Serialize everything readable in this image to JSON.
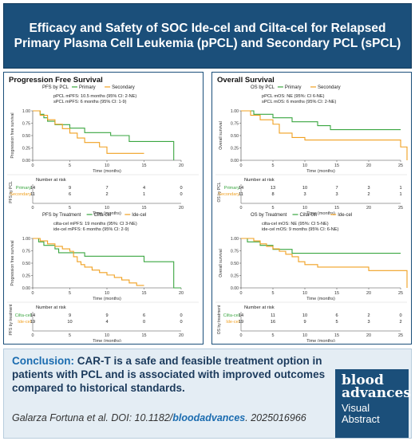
{
  "header": {
    "title": "Efficacy and Safety of SOC Ide-cel and Cilta-cel for Relapsed Primary Plasma Cell Leukemia (pPCL) and Secondary PCL (sPCL)"
  },
  "colors": {
    "navy": "#1b4f7a",
    "green": "#3aa640",
    "orange": "#f0a020",
    "accent": "#1b6cb0"
  },
  "left_panel": {
    "title": "Progression Free Survival",
    "plot1": {
      "title": "PFS by PCL",
      "legend": [
        "Primary",
        "Secondary"
      ],
      "annotations": [
        "pPCL mPFS: 10.5 months (95% CI: 2-NE)",
        "sPCL mPFS: 6 months (95% CI: 1-9)"
      ],
      "ylabel": "Progression free survival",
      "xlabel": "Time (months)",
      "yticks": [
        "1.00",
        "0.75",
        "0.50",
        "0.25",
        "0.00"
      ],
      "xticks": [
        "0",
        "5",
        "10",
        "15",
        "20"
      ],
      "risk_title": "Number at risk",
      "risk_ylabel": "PFS by PCL",
      "risk_rows": [
        {
          "label": "Primary",
          "values": [
            "14",
            "9",
            "7",
            "4",
            "0"
          ]
        },
        {
          "label": "Secondary",
          "values": [
            "11",
            "6",
            "2",
            "1",
            "0"
          ]
        }
      ]
    },
    "plot2": {
      "title": "PFS by Treatment",
      "legend": [
        "Cilta-cel",
        "Ide-cel"
      ],
      "annotations": [
        "cilta-cel mPFS: 19 months (95%: CI 3-NE)",
        "ide-cel mPFS: 6 months (95% CI: 2-9)"
      ],
      "ylabel": "Progression free survival",
      "xlabel": "Time (months)",
      "yticks": [
        "1.00",
        "0.75",
        "0.50",
        "0.25",
        "0.00"
      ],
      "xticks": [
        "0",
        "5",
        "10",
        "15",
        "20"
      ],
      "risk_title": "Number at risk",
      "risk_ylabel": "PFS by treatment",
      "risk_rows": [
        {
          "label": "Cilta-cel",
          "values": [
            "14",
            "9",
            "9",
            "6",
            "0"
          ]
        },
        {
          "label": "Ide-cel",
          "values": [
            "19",
            "10",
            "4",
            "0",
            "0"
          ]
        }
      ]
    }
  },
  "right_panel": {
    "title": "Overall Survival",
    "plot1": {
      "title": "OS by PCL",
      "legend": [
        "Primary",
        "Secondary"
      ],
      "annotations": [
        "pPCL mOS: NE (95%: CI 6-NE)",
        "sPCL mOS: 6 months (95% CI: 2-NE)"
      ],
      "ylabel": "Overall survival",
      "xlabel": "Time (months)",
      "yticks": [
        "1.00",
        "0.75",
        "0.50",
        "0.25",
        "0.00"
      ],
      "xticks": [
        "0",
        "5",
        "10",
        "15",
        "20",
        "25"
      ],
      "risk_title": "Number at risk",
      "risk_ylabel": "OS by PCL",
      "risk_rows": [
        {
          "label": "Primary",
          "values": [
            "14",
            "13",
            "10",
            "7",
            "3",
            "1"
          ]
        },
        {
          "label": "Secondary",
          "values": [
            "11",
            "8",
            "3",
            "3",
            "2",
            "1"
          ]
        }
      ]
    },
    "plot2": {
      "title": "OS by Treatment",
      "legend": [
        "Cilta-cel",
        "Ide-cel"
      ],
      "annotations": [
        "cilta-cel mOS: NE (95%: CI 5-NE)",
        "ide-cel mOS: 9 months (95% CI: 6-NE)"
      ],
      "ylabel": "Overall survival",
      "xlabel": "Time (months)",
      "yticks": [
        "1.00",
        "0.75",
        "0.50",
        "0.25",
        "0.00"
      ],
      "xticks": [
        "0",
        "5",
        "10",
        "15",
        "20",
        "25"
      ],
      "risk_title": "Number at risk",
      "risk_ylabel": "OS by treatment",
      "risk_rows": [
        {
          "label": "Cilta-cel",
          "values": [
            "14",
            "11",
            "10",
            "6",
            "2",
            "0"
          ]
        },
        {
          "label": "Ide-cel",
          "values": [
            "19",
            "16",
            "9",
            "5",
            "3",
            "2"
          ]
        }
      ]
    }
  },
  "conclusion": {
    "label": "Conclusion:",
    "text": " CAR-T is a safe and feasible treatment option in patients with PCL and is associated with improved outcomes compared to historical standards."
  },
  "citation": {
    "prefix": "Galarza Fortuna et al. DOI: 10.1182/",
    "link": "bloodadvances",
    "suffix": ". 2025016966"
  },
  "logo": {
    "line1": "blood",
    "line2": "advances",
    "line3": "Visual",
    "line4": "Abstract"
  },
  "chart_data": [
    {
      "type": "line",
      "title": "PFS by PCL",
      "xlabel": "Time (months)",
      "ylabel": "Progression free survival",
      "xlim": [
        0,
        20
      ],
      "ylim": [
        0,
        1
      ],
      "series": [
        {
          "name": "Primary",
          "x": [
            0,
            1,
            1.5,
            2,
            3,
            5,
            7,
            10.5,
            13,
            19
          ],
          "y": [
            1.0,
            0.93,
            0.86,
            0.79,
            0.72,
            0.65,
            0.56,
            0.5,
            0.38,
            0.0
          ]
        },
        {
          "name": "Secondary",
          "x": [
            0,
            1,
            2,
            3,
            4,
            5,
            6,
            7,
            9,
            10,
            15
          ],
          "y": [
            1.0,
            0.91,
            0.82,
            0.73,
            0.64,
            0.55,
            0.45,
            0.36,
            0.27,
            0.14,
            0.14
          ]
        }
      ]
    },
    {
      "type": "line",
      "title": "PFS by Treatment",
      "xlabel": "Time (months)",
      "ylabel": "Progression free survival",
      "xlim": [
        0,
        20
      ],
      "ylim": [
        0,
        1
      ],
      "series": [
        {
          "name": "Cilta-cel",
          "x": [
            0,
            0.8,
            1.5,
            3,
            3.5,
            7,
            15,
            19,
            20
          ],
          "y": [
            1.0,
            0.93,
            0.86,
            0.79,
            0.71,
            0.64,
            0.53,
            0.0,
            0.0
          ]
        },
        {
          "name": "Ide-cel",
          "x": [
            0,
            1,
            2,
            3,
            4,
            5,
            5.5,
            6,
            6.5,
            7,
            8,
            9,
            10,
            11,
            12,
            13,
            14,
            15
          ],
          "y": [
            1.0,
            0.95,
            0.89,
            0.84,
            0.79,
            0.74,
            0.63,
            0.53,
            0.47,
            0.42,
            0.36,
            0.31,
            0.26,
            0.21,
            0.16,
            0.1,
            0.05,
            0.05
          ]
        }
      ]
    },
    {
      "type": "line",
      "title": "OS by PCL",
      "xlabel": "Time (months)",
      "ylabel": "Overall survival",
      "xlim": [
        0,
        25
      ],
      "ylim": [
        0,
        1
      ],
      "series": [
        {
          "name": "Primary",
          "x": [
            0,
            2,
            5,
            8,
            12,
            14,
            25
          ],
          "y": [
            1.0,
            0.93,
            0.86,
            0.78,
            0.7,
            0.62,
            0.62
          ]
        },
        {
          "name": "Secondary",
          "x": [
            0,
            1.5,
            3,
            5,
            6,
            8,
            10,
            20,
            25,
            26
          ],
          "y": [
            1.0,
            0.91,
            0.82,
            0.73,
            0.55,
            0.46,
            0.41,
            0.41,
            0.27,
            0.0
          ]
        }
      ]
    },
    {
      "type": "line",
      "title": "OS by Treatment",
      "xlabel": "Time (months)",
      "ylabel": "Overall survival",
      "xlim": [
        0,
        25
      ],
      "ylim": [
        0,
        1
      ],
      "series": [
        {
          "name": "Cilta-cel",
          "x": [
            0,
            1,
            3,
            5,
            8,
            25
          ],
          "y": [
            1.0,
            0.93,
            0.86,
            0.78,
            0.7,
            0.7
          ]
        },
        {
          "name": "Ide-cel",
          "x": [
            0,
            2,
            3,
            4,
            5,
            6,
            7,
            8,
            9,
            10,
            12,
            16,
            20,
            25,
            26
          ],
          "y": [
            1.0,
            0.95,
            0.89,
            0.84,
            0.79,
            0.74,
            0.68,
            0.63,
            0.53,
            0.47,
            0.42,
            0.42,
            0.35,
            0.35,
            0.0
          ]
        }
      ]
    }
  ]
}
